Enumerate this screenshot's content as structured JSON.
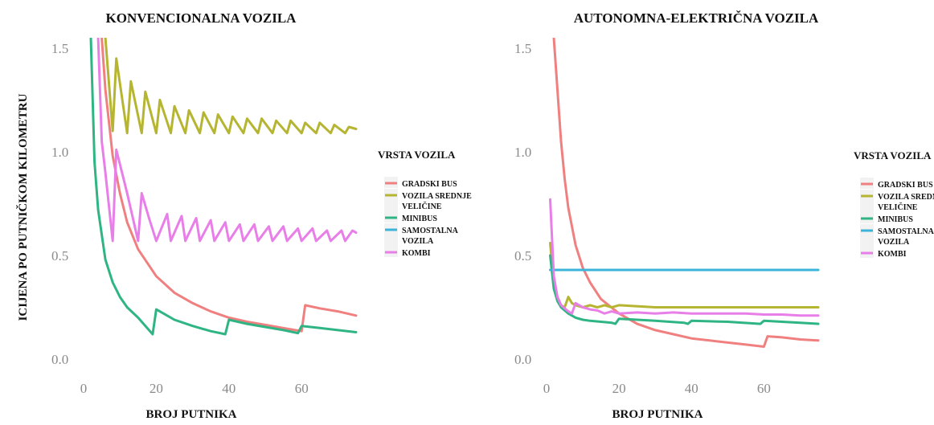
{
  "y_axis_label": "ICIJENA PO PUTNIČKOM KILOMETRU",
  "chart_data": [
    {
      "type": "line",
      "title": "KONVENCIONALNA VOZILA",
      "xlabel": "BROJ PUTNIKA",
      "ylabel": "ICIJENA PO PUTNIČKOM KILOMETRU",
      "xlim": [
        0,
        75
      ],
      "ylim": [
        0,
        1.55
      ],
      "xticks": [
        "0",
        "20",
        "40",
        "60"
      ],
      "yticks": [
        "0.0",
        "0.5",
        "1.0",
        "1.5"
      ],
      "grid": false,
      "legend": {
        "title": "VRSTA VOZILA",
        "position": "right",
        "entries": [
          "GRADSKI BUS",
          "VOZILA SREDNJE VELIČINE",
          "MINIBUS",
          "SAMOSTALNA VOZILA",
          "KOMBI"
        ]
      },
      "series": [
        {
          "name": "GRADSKI BUS",
          "color": "#f08080",
          "x": [
            5,
            6,
            8,
            10,
            12,
            15,
            20,
            25,
            30,
            35,
            40,
            45,
            50,
            55,
            60,
            61,
            65,
            70,
            75
          ],
          "y": [
            1.55,
            1.3,
            0.98,
            0.8,
            0.66,
            0.53,
            0.4,
            0.32,
            0.27,
            0.23,
            0.2,
            0.18,
            0.165,
            0.15,
            0.135,
            0.26,
            0.245,
            0.23,
            0.21
          ]
        },
        {
          "name": "VOZILA SREDNJE VELIČINE",
          "color": "#b5b532",
          "x": [
            6,
            8,
            9,
            12,
            13,
            16,
            17,
            20,
            21,
            24,
            25,
            28,
            29,
            32,
            33,
            36,
            37,
            40,
            41,
            44,
            45,
            48,
            49,
            52,
            53,
            56,
            57,
            60,
            61,
            64,
            65,
            68,
            69,
            72,
            73,
            75
          ],
          "y": [
            1.55,
            1.1,
            1.45,
            1.09,
            1.34,
            1.09,
            1.29,
            1.09,
            1.25,
            1.09,
            1.22,
            1.09,
            1.2,
            1.09,
            1.19,
            1.09,
            1.18,
            1.09,
            1.17,
            1.09,
            1.16,
            1.09,
            1.16,
            1.09,
            1.15,
            1.09,
            1.15,
            1.09,
            1.14,
            1.09,
            1.14,
            1.09,
            1.13,
            1.09,
            1.12,
            1.11
          ]
        },
        {
          "name": "MINIBUS",
          "color": "#2fb584",
          "x": [
            2,
            3,
            4,
            6,
            8,
            10,
            12,
            15,
            19,
            20,
            22,
            25,
            30,
            35,
            39,
            40,
            45,
            50,
            55,
            59,
            60,
            65,
            70,
            75
          ],
          "y": [
            1.55,
            0.95,
            0.72,
            0.48,
            0.37,
            0.3,
            0.25,
            0.2,
            0.12,
            0.24,
            0.22,
            0.19,
            0.16,
            0.135,
            0.12,
            0.19,
            0.17,
            0.155,
            0.14,
            0.125,
            0.16,
            0.15,
            0.14,
            0.13
          ]
        },
        {
          "name": "SAMOSTALNA VOZILA",
          "color": "#3ab4d9",
          "x": [],
          "y": []
        },
        {
          "name": "KOMBI",
          "color": "#e87fe8",
          "x": [
            4,
            5,
            6,
            8,
            9,
            12,
            15,
            16,
            18,
            20,
            23,
            24,
            27,
            28,
            31,
            32,
            35,
            36,
            39,
            40,
            43,
            44,
            47,
            48,
            51,
            52,
            55,
            56,
            59,
            60,
            63,
            64,
            67,
            68,
            71,
            72,
            74,
            75
          ],
          "y": [
            1.55,
            1.05,
            0.9,
            0.57,
            1.01,
            0.8,
            0.57,
            0.8,
            0.68,
            0.57,
            0.7,
            0.57,
            0.69,
            0.57,
            0.68,
            0.57,
            0.67,
            0.57,
            0.66,
            0.57,
            0.65,
            0.57,
            0.65,
            0.57,
            0.64,
            0.57,
            0.64,
            0.57,
            0.63,
            0.57,
            0.63,
            0.57,
            0.62,
            0.57,
            0.62,
            0.57,
            0.62,
            0.61
          ]
        }
      ]
    },
    {
      "type": "line",
      "title": "AUTONOMNA-ELEKTRIČNA VOZILA",
      "xlabel": "BROJ PUTNIKA",
      "ylabel": "",
      "xlim": [
        0,
        75
      ],
      "ylim": [
        0,
        1.55
      ],
      "xticks": [
        "0",
        "20",
        "40",
        "60"
      ],
      "yticks": [
        "0.0",
        "0.5",
        "1.0",
        "1.5"
      ],
      "grid": false,
      "legend": {
        "title": "VRSTA VOZILA",
        "position": "right",
        "entries": [
          "GRADSKI BUS",
          "VOZILA SREDNJE VELIČINE",
          "MINIBUS",
          "SAMOSTALNA VOZILA",
          "KOMBI"
        ]
      },
      "series": [
        {
          "name": "GRADSKI BUS",
          "color": "#f08080",
          "x": [
            2,
            3,
            4,
            5,
            6,
            8,
            10,
            12,
            15,
            20,
            25,
            30,
            35,
            40,
            45,
            50,
            55,
            60,
            61,
            65,
            70,
            75
          ],
          "y": [
            1.55,
            1.3,
            1.05,
            0.87,
            0.73,
            0.55,
            0.44,
            0.37,
            0.29,
            0.22,
            0.17,
            0.14,
            0.12,
            0.1,
            0.09,
            0.08,
            0.07,
            0.06,
            0.11,
            0.105,
            0.095,
            0.09
          ]
        },
        {
          "name": "VOZILA SREDNJE VELIČINE",
          "color": "#b5b532",
          "x": [
            1,
            2,
            3,
            4,
            5,
            6,
            7,
            8,
            10,
            12,
            14,
            16,
            18,
            20,
            30,
            40,
            50,
            60,
            70,
            75
          ],
          "y": [
            0.56,
            0.36,
            0.3,
            0.26,
            0.25,
            0.3,
            0.27,
            0.26,
            0.25,
            0.26,
            0.25,
            0.26,
            0.25,
            0.26,
            0.25,
            0.25,
            0.25,
            0.25,
            0.25,
            0.25
          ]
        },
        {
          "name": "MINIBUS",
          "color": "#2fb584",
          "x": [
            1,
            2,
            3,
            4,
            6,
            8,
            10,
            12,
            15,
            18,
            19,
            20,
            25,
            30,
            38,
            39,
            40,
            50,
            59,
            60,
            65,
            70,
            75
          ],
          "y": [
            0.5,
            0.34,
            0.28,
            0.25,
            0.22,
            0.2,
            0.19,
            0.185,
            0.18,
            0.175,
            0.17,
            0.195,
            0.19,
            0.185,
            0.175,
            0.17,
            0.185,
            0.18,
            0.17,
            0.185,
            0.18,
            0.175,
            0.17
          ]
        },
        {
          "name": "SAMOSTALNA VOZILA",
          "color": "#3ab4d9",
          "x": [
            1,
            75
          ],
          "y": [
            0.43,
            0.43
          ]
        },
        {
          "name": "KOMBI",
          "color": "#e87fe8",
          "x": [
            1,
            2,
            3,
            4,
            6,
            7,
            8,
            10,
            12,
            14,
            16,
            18,
            20,
            25,
            30,
            35,
            40,
            45,
            50,
            55,
            60,
            65,
            70,
            75
          ],
          "y": [
            0.77,
            0.4,
            0.3,
            0.26,
            0.23,
            0.22,
            0.27,
            0.25,
            0.24,
            0.235,
            0.22,
            0.23,
            0.22,
            0.225,
            0.22,
            0.225,
            0.22,
            0.22,
            0.22,
            0.22,
            0.215,
            0.215,
            0.21,
            0.21
          ]
        }
      ]
    }
  ]
}
